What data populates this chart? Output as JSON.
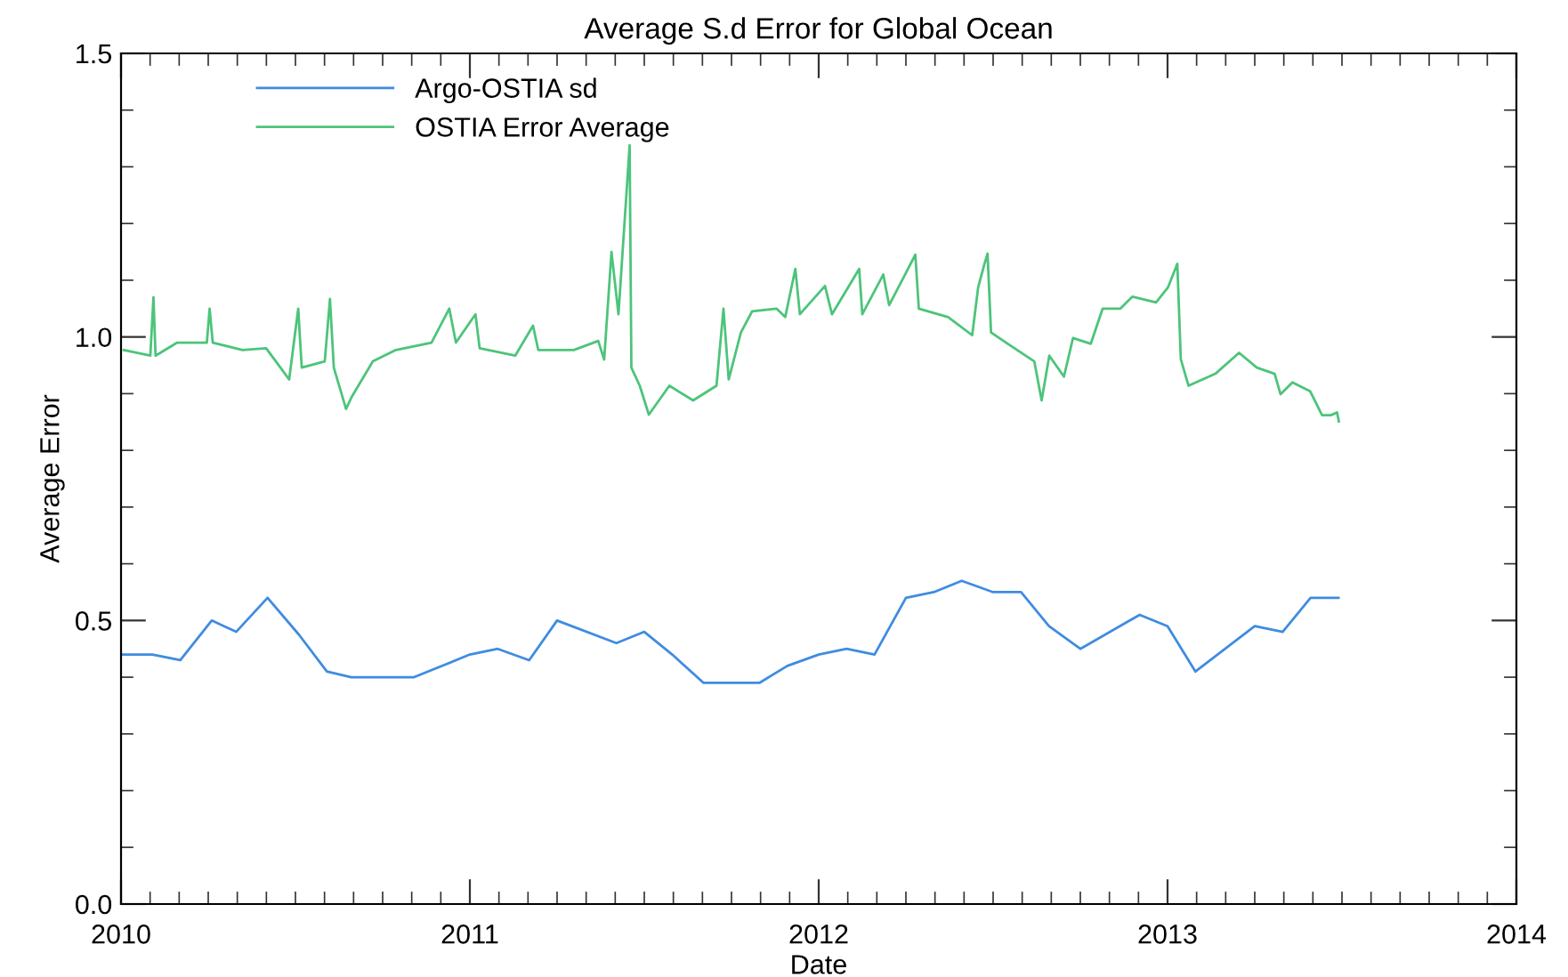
{
  "chart_data": {
    "type": "line",
    "title": "Average S.d Error for Global Ocean",
    "xlabel": "Date",
    "ylabel": "Average Error",
    "xlim": [
      2010,
      2014
    ],
    "xticks": [
      2010,
      2011,
      2012,
      2013,
      2014
    ],
    "ylim": [
      0,
      1.5
    ],
    "yticks": [
      {
        "value": 0,
        "label": "0.0"
      },
      {
        "value": 0.5,
        "label": "0.5"
      },
      {
        "value": 1.0,
        "label": "1.0"
      },
      {
        "value": 1.5,
        "label": "1.5"
      }
    ],
    "legend": "top left",
    "grid": false,
    "marker": "none",
    "line_style": "solid",
    "series": [
      {
        "name": "Argo-OSTIA sd",
        "color": "#3f8ce0",
        "x": [
          2010.0,
          2010.09,
          2010.17,
          2010.26,
          2010.33,
          2010.42,
          2010.51,
          2010.59,
          2010.66,
          2010.84,
          2011.0,
          2011.08,
          2011.17,
          2011.25,
          2011.42,
          2011.5,
          2011.58,
          2011.67,
          2011.83,
          2011.91,
          2012.0,
          2012.08,
          2012.16,
          2012.25,
          2012.33,
          2012.41,
          2012.5,
          2012.58,
          2012.66,
          2012.75,
          2012.92,
          2013.0,
          2013.08,
          2013.25,
          2013.33,
          2013.41,
          2013.49
        ],
        "values": [
          0.44,
          0.44,
          0.43,
          0.5,
          0.48,
          0.54,
          0.475,
          0.41,
          0.4,
          0.4,
          0.44,
          0.45,
          0.43,
          0.5,
          0.46,
          0.48,
          0.44,
          0.39,
          0.39,
          0.42,
          0.44,
          0.45,
          0.44,
          0.54,
          0.55,
          0.57,
          0.55,
          0.55,
          0.49,
          0.45,
          0.51,
          0.49,
          0.41,
          0.49,
          0.48,
          0.54,
          0.54
        ]
      },
      {
        "name": "OSTIA Error Average",
        "color": "#4cc47a",
        "x": [
          2010.008,
          2010.084,
          2010.093,
          2010.099,
          2010.161,
          2010.246,
          2010.254,
          2010.263,
          2010.348,
          2010.416,
          2010.457,
          2010.482,
          2010.508,
          2010.518,
          2010.584,
          2010.599,
          2010.61,
          2010.645,
          2010.661,
          2010.722,
          2010.788,
          2010.89,
          2010.941,
          2010.96,
          2011.016,
          2011.028,
          2011.13,
          2011.181,
          2011.196,
          2011.298,
          2011.368,
          2011.385,
          2011.406,
          2011.426,
          2011.458,
          2011.463,
          2011.487,
          2011.513,
          2011.572,
          2011.64,
          2011.707,
          2011.727,
          2011.742,
          2011.777,
          2011.809,
          2011.879,
          2011.904,
          2011.933,
          2011.946,
          2012.018,
          2012.038,
          2012.116,
          2012.125,
          2012.185,
          2012.202,
          2012.277,
          2012.287,
          2012.371,
          2012.44,
          2012.457,
          2012.473,
          2012.484,
          2012.494,
          2012.542,
          2012.593,
          2012.618,
          2012.639,
          2012.661,
          2012.703,
          2012.729,
          2012.78,
          2012.814,
          2012.865,
          2012.899,
          2012.967,
          2013.001,
          2013.028,
          2013.038,
          2013.06,
          2013.137,
          2013.205,
          2013.256,
          2013.307,
          2013.324,
          2013.358,
          2013.409,
          2013.443,
          2013.468,
          2013.486,
          2013.491
        ],
        "values": [
          0.977,
          0.967,
          1.07,
          0.967,
          0.99,
          0.99,
          1.05,
          0.99,
          0.977,
          0.98,
          0.946,
          0.925,
          1.05,
          0.946,
          0.957,
          1.067,
          0.946,
          0.873,
          0.894,
          0.957,
          0.977,
          0.99,
          1.05,
          0.99,
          1.04,
          0.98,
          0.967,
          1.02,
          0.977,
          0.977,
          0.993,
          0.96,
          1.15,
          1.04,
          1.338,
          0.946,
          0.914,
          0.863,
          0.914,
          0.888,
          0.914,
          1.05,
          0.925,
          1.008,
          1.045,
          1.05,
          1.035,
          1.12,
          1.04,
          1.09,
          1.04,
          1.12,
          1.04,
          1.11,
          1.056,
          1.145,
          1.05,
          1.035,
          1.003,
          1.087,
          1.124,
          1.147,
          1.008,
          0.988,
          0.967,
          0.957,
          0.888,
          0.967,
          0.93,
          0.998,
          0.988,
          1.05,
          1.05,
          1.071,
          1.061,
          1.087,
          1.129,
          0.961,
          0.914,
          0.935,
          0.972,
          0.946,
          0.935,
          0.899,
          0.92,
          0.904,
          0.862,
          0.862,
          0.867,
          0.851
        ]
      }
    ]
  }
}
